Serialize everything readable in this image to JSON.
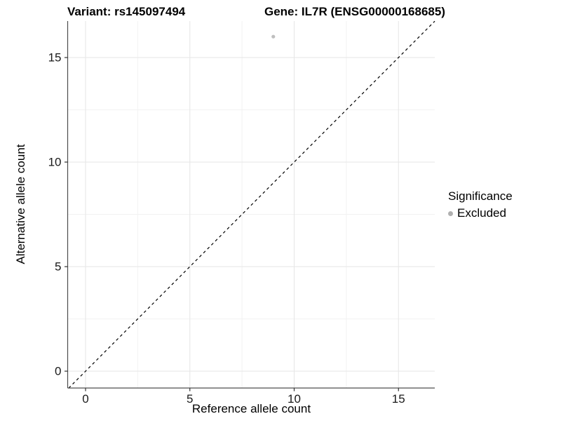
{
  "chart_data": {
    "type": "scatter",
    "title_left": "Variant: rs145097494",
    "title_right": "Gene: IL7R (ENSG00000168685)",
    "xlabel": "Reference allele count",
    "ylabel": "Alternative allele count",
    "xlim": [
      -0.86,
      16.74
    ],
    "ylim": [
      -0.81,
      16.74
    ],
    "xticks": [
      0,
      5,
      10,
      15
    ],
    "yticks": [
      0,
      5,
      10,
      15
    ],
    "xticks_minor": [
      2.5,
      7.5,
      12.5
    ],
    "yticks_minor": [
      2.5,
      7.5,
      12.5
    ],
    "grid": "major and minor gridlines, light gray on white",
    "identity_line": {
      "slope": 1,
      "intercept": 0,
      "linestyle": "dashed",
      "color": "#000000"
    },
    "series": [
      {
        "name": "Excluded",
        "color": "#bfbfbf",
        "points": [
          {
            "x": 9,
            "y": 16
          }
        ]
      }
    ],
    "legend": {
      "position": "right",
      "title": "Significance",
      "entries": [
        {
          "label": "Excluded",
          "color": "#b0b0b0"
        }
      ]
    },
    "colors": {
      "grid_major": "#e6e6e6",
      "grid_minor": "#f2f2f2",
      "axis_line": "#4d4d4d",
      "tick_mark": "#333333",
      "tick_label": "#1a1a1a",
      "text": "#000000",
      "background": "#ffffff"
    }
  }
}
